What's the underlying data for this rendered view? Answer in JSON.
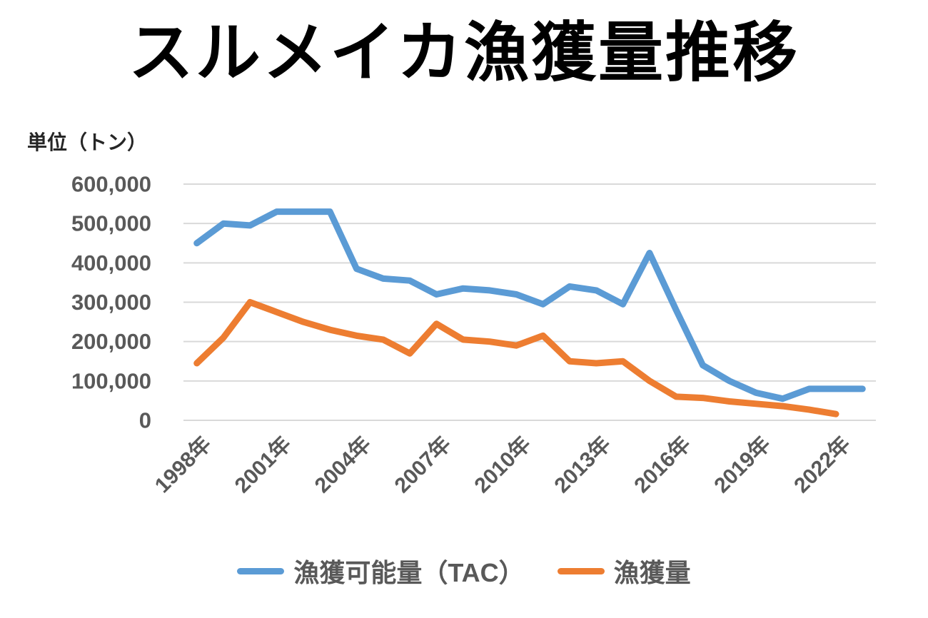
{
  "chart_data": {
    "type": "line",
    "title": "スルメイカ漁獲量推移",
    "unit_label": "単位（トン）",
    "categories": [
      1998,
      1999,
      2000,
      2001,
      2002,
      2003,
      2004,
      2005,
      2006,
      2007,
      2008,
      2009,
      2010,
      2011,
      2012,
      2013,
      2014,
      2015,
      2016,
      2017,
      2018,
      2019,
      2020,
      2021,
      2022,
      2023
    ],
    "x_tick_labels": [
      "1998年",
      "2001年",
      "2004年",
      "2007年",
      "2010年",
      "2013年",
      "2016年",
      "2019年",
      "2022年"
    ],
    "x_tick_indices": [
      0,
      3,
      6,
      9,
      12,
      15,
      18,
      21,
      24
    ],
    "ylim": [
      0,
      600000
    ],
    "y_tick_step": 100000,
    "y_tick_labels": [
      "0",
      "100,000",
      "200,000",
      "300,000",
      "400,000",
      "500,000",
      "600,000"
    ],
    "grid": true,
    "gridline_color": "#D9D9D9",
    "axis_text_color": "#595959",
    "legend_position": "bottom",
    "series": [
      {
        "key": "tac",
        "name": "漁獲可能量（TAC）",
        "color": "#5B9BD5",
        "values": [
          450000,
          500000,
          495000,
          530000,
          530000,
          530000,
          385000,
          360000,
          355000,
          320000,
          335000,
          330000,
          320000,
          295000,
          340000,
          330000,
          295000,
          425000,
          280000,
          140000,
          100000,
          70000,
          55000,
          80000,
          80000,
          80000
        ]
      },
      {
        "key": "catch",
        "name": "漁獲量",
        "color": "#ED7D31",
        "values": [
          145000,
          210000,
          300000,
          275000,
          250000,
          230000,
          215000,
          205000,
          170000,
          245000,
          205000,
          200000,
          190000,
          215000,
          150000,
          145000,
          150000,
          100000,
          60000,
          57000,
          48000,
          42000,
          36000,
          27000,
          16000,
          null
        ]
      }
    ]
  }
}
